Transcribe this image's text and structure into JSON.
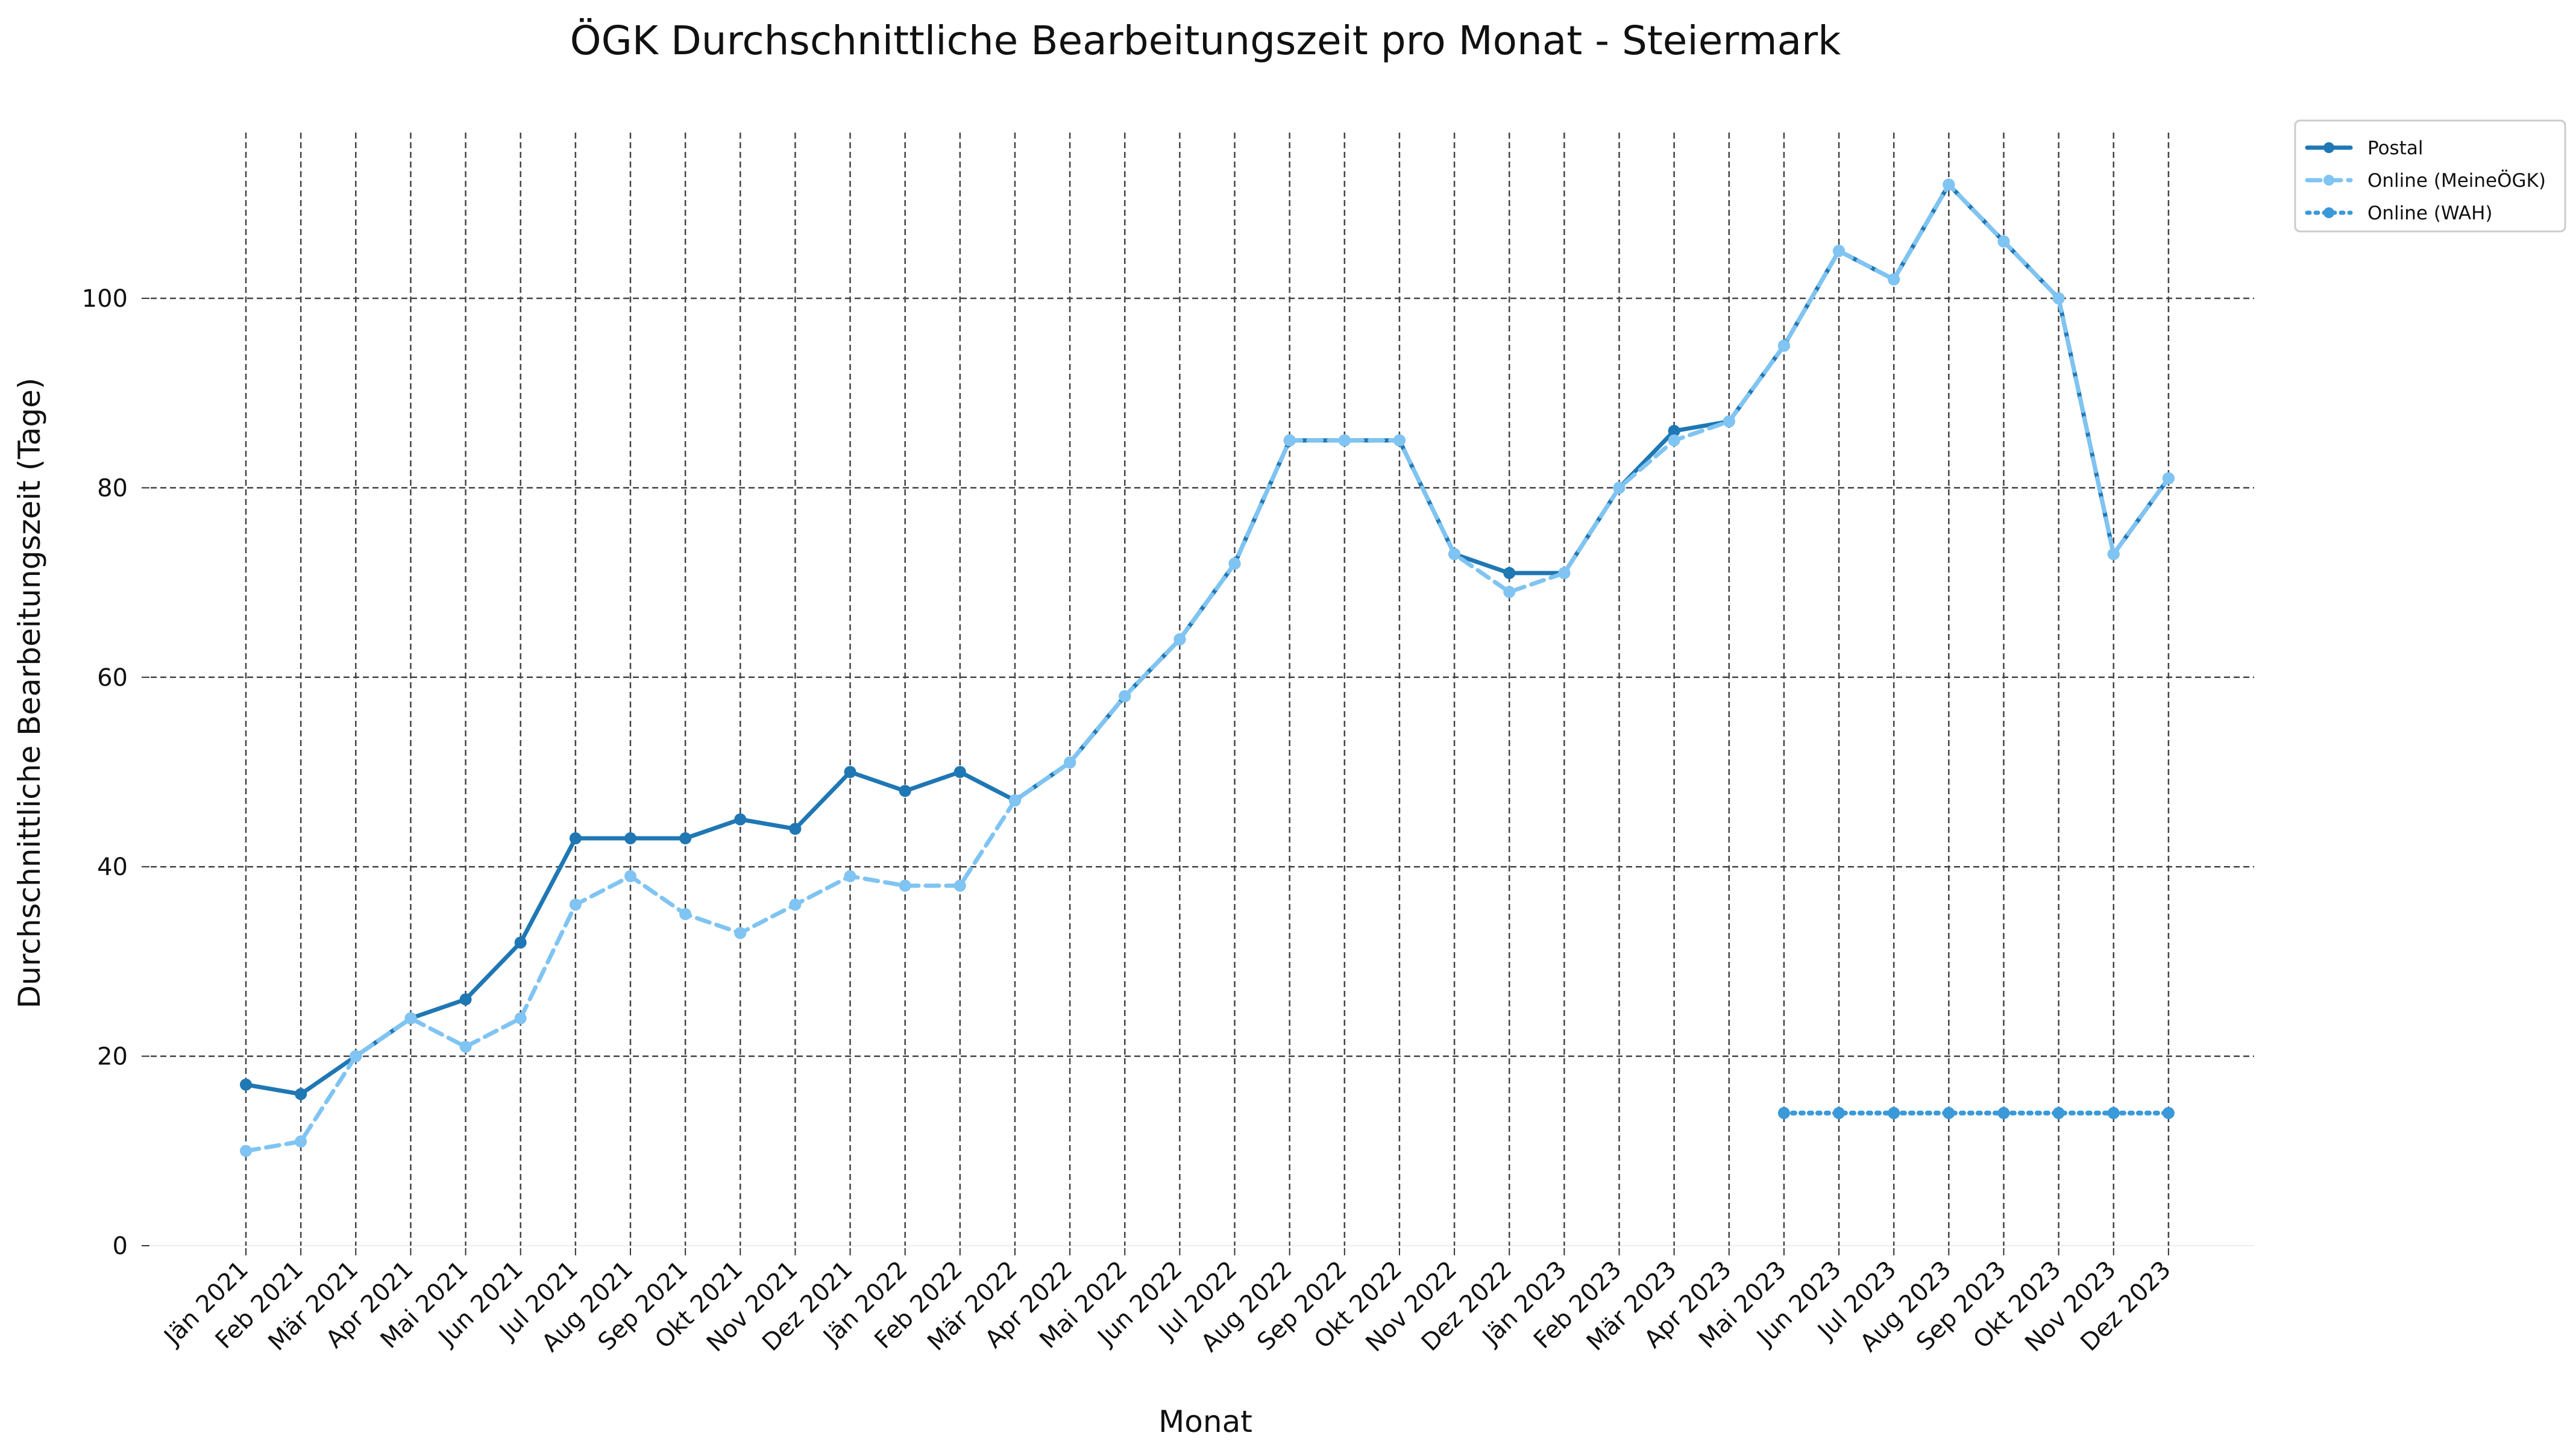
{
  "chart_data": {
    "type": "line",
    "title": "ÖGK Durchschnittliche Bearbeitungszeit pro Monat - Steiermark",
    "xlabel": "Monat",
    "ylabel": "Durchschnittliche Bearbeitungszeit (Tage)",
    "ylim": [
      0,
      118
    ],
    "yticks": [
      0,
      20,
      40,
      60,
      80,
      100
    ],
    "grid": true,
    "legend_position": "upper right, outside plot",
    "categories": [
      "Jän 2021",
      "Feb 2021",
      "Mär 2021",
      "Apr 2021",
      "Mai 2021",
      "Jun 2021",
      "Jul 2021",
      "Aug 2021",
      "Sep 2021",
      "Okt 2021",
      "Nov 2021",
      "Dez 2021",
      "Jän 2022",
      "Feb 2022",
      "Mär 2022",
      "Apr 2022",
      "Mai 2022",
      "Jun 2022",
      "Jul 2022",
      "Aug 2022",
      "Sep 2022",
      "Okt 2022",
      "Nov 2022",
      "Dez 2022",
      "Jän 2023",
      "Feb 2023",
      "Mär 2023",
      "Apr 2023",
      "Mai 2023",
      "Jun 2023",
      "Jul 2023",
      "Aug 2023",
      "Sep 2023",
      "Okt 2023",
      "Nov 2023",
      "Dez 2023"
    ],
    "series": [
      {
        "name": "Postal",
        "color": "#1f77b4",
        "style": "solid",
        "values": [
          17,
          16,
          20,
          24,
          26,
          32,
          43,
          43,
          43,
          45,
          44,
          50,
          48,
          50,
          47,
          51,
          58,
          64,
          72,
          85,
          85,
          85,
          73,
          71,
          71,
          80,
          86,
          87,
          95,
          105,
          102,
          112,
          106,
          100,
          73,
          81
        ]
      },
      {
        "name": "Online (MeineÖGK)",
        "color": "#7fc4f2",
        "style": "dashed",
        "values": [
          10,
          11,
          20,
          24,
          21,
          24,
          36,
          39,
          35,
          33,
          36,
          39,
          38,
          38,
          47,
          51,
          58,
          64,
          72,
          85,
          85,
          85,
          73,
          69,
          71,
          80,
          85,
          87,
          95,
          105,
          102,
          112,
          106,
          100,
          73,
          81
        ]
      },
      {
        "name": "Online (WAH)",
        "color": "#3a99d8",
        "style": "dotted",
        "values": [
          null,
          null,
          null,
          null,
          null,
          null,
          null,
          null,
          null,
          null,
          null,
          null,
          null,
          null,
          null,
          null,
          null,
          null,
          null,
          null,
          null,
          null,
          null,
          null,
          null,
          null,
          null,
          null,
          14,
          14,
          14,
          14,
          14,
          14,
          14,
          14
        ]
      }
    ]
  }
}
